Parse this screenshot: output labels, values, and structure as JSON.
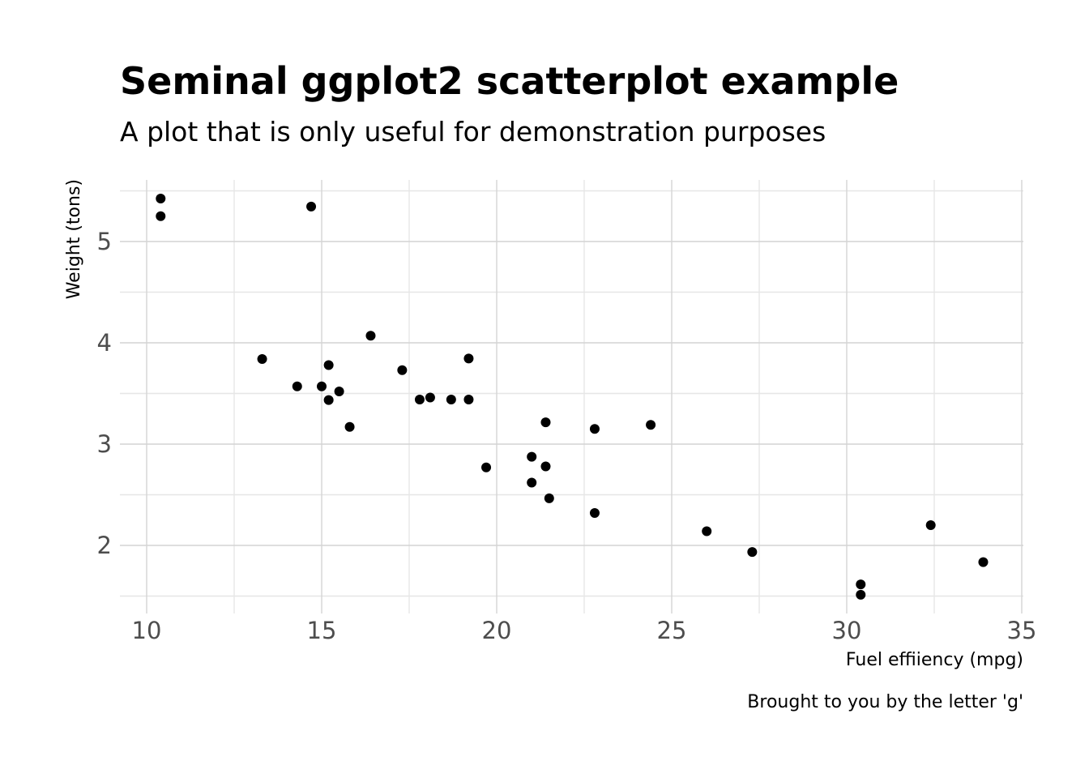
{
  "chart_data": {
    "type": "scatter",
    "title": "Seminal ggplot2 scatterplot example",
    "subtitle": "A plot that is only useful for demonstration purposes",
    "xlabel": "Fuel effiiency (mpg)",
    "ylabel": "Weight (tons)",
    "caption": "Brought to you by the letter 'g'",
    "xlim": [
      10.4,
      35
    ],
    "ylim": [
      1.513,
      5.424
    ],
    "x_ticks": [
      10,
      15,
      20,
      25,
      30,
      35
    ],
    "x_tick_labels": [
      "10",
      "15",
      "20",
      "25",
      "30",
      "35"
    ],
    "y_ticks": [
      2,
      3,
      4,
      5
    ],
    "y_tick_labels": [
      "2",
      "3",
      "4",
      "5"
    ],
    "x_minor_ticks": [
      12.5,
      17.5,
      22.5,
      27.5,
      32.5
    ],
    "y_minor_ticks": [
      1.5,
      2.5,
      3.5,
      4.5,
      5.5
    ],
    "grid": true,
    "point_color": "#000000",
    "points": [
      {
        "x": 21.0,
        "y": 2.62
      },
      {
        "x": 21.0,
        "y": 2.875
      },
      {
        "x": 22.8,
        "y": 2.32
      },
      {
        "x": 21.4,
        "y": 3.215
      },
      {
        "x": 18.7,
        "y": 3.44
      },
      {
        "x": 18.1,
        "y": 3.46
      },
      {
        "x": 14.3,
        "y": 3.57
      },
      {
        "x": 24.4,
        "y": 3.19
      },
      {
        "x": 22.8,
        "y": 3.15
      },
      {
        "x": 19.2,
        "y": 3.44
      },
      {
        "x": 17.8,
        "y": 3.44
      },
      {
        "x": 16.4,
        "y": 4.07
      },
      {
        "x": 17.3,
        "y": 3.73
      },
      {
        "x": 15.2,
        "y": 3.78
      },
      {
        "x": 10.4,
        "y": 5.25
      },
      {
        "x": 10.4,
        "y": 5.424
      },
      {
        "x": 14.7,
        "y": 5.345
      },
      {
        "x": 32.4,
        "y": 2.2
      },
      {
        "x": 30.4,
        "y": 1.615
      },
      {
        "x": 33.9,
        "y": 1.835
      },
      {
        "x": 21.5,
        "y": 2.465
      },
      {
        "x": 15.5,
        "y": 3.52
      },
      {
        "x": 15.2,
        "y": 3.435
      },
      {
        "x": 13.3,
        "y": 3.84
      },
      {
        "x": 19.2,
        "y": 3.845
      },
      {
        "x": 27.3,
        "y": 1.935
      },
      {
        "x": 26.0,
        "y": 2.14
      },
      {
        "x": 30.4,
        "y": 1.513
      },
      {
        "x": 15.8,
        "y": 3.17
      },
      {
        "x": 19.7,
        "y": 2.77
      },
      {
        "x": 15.0,
        "y": 3.57
      },
      {
        "x": 21.4,
        "y": 2.78
      }
    ]
  }
}
